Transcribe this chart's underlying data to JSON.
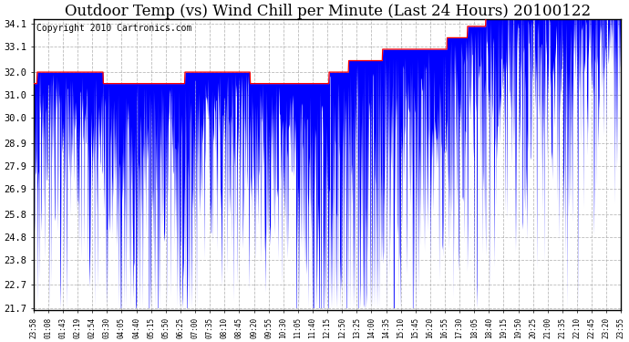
{
  "title": "Outdoor Temp (vs) Wind Chill per Minute (Last 24 Hours) 20100122",
  "copyright": "Copyright 2010 Cartronics.com",
  "yticks": [
    21.7,
    22.7,
    23.8,
    24.8,
    25.8,
    26.9,
    27.9,
    28.9,
    30.0,
    31.0,
    32.0,
    33.1,
    34.1
  ],
  "ymin": 21.7,
  "ymax": 34.1,
  "bar_color": "#0000ff",
  "line_color": "#ff0000",
  "background_color": "#ffffff",
  "grid_color": "#aaaaaa",
  "title_fontsize": 12,
  "copyright_fontsize": 7,
  "xtick_labels": [
    "23:58",
    "01:08",
    "01:43",
    "02:19",
    "02:54",
    "03:30",
    "04:05",
    "04:40",
    "05:15",
    "05:50",
    "06:25",
    "07:00",
    "07:35",
    "08:10",
    "08:45",
    "09:20",
    "09:55",
    "10:30",
    "11:05",
    "11:40",
    "12:15",
    "12:50",
    "13:25",
    "14:00",
    "14:35",
    "15:10",
    "15:45",
    "16:20",
    "16:55",
    "17:30",
    "18:05",
    "18:40",
    "19:15",
    "19:50",
    "20:25",
    "21:00",
    "21:35",
    "22:10",
    "22:45",
    "23:20",
    "23:55"
  ]
}
